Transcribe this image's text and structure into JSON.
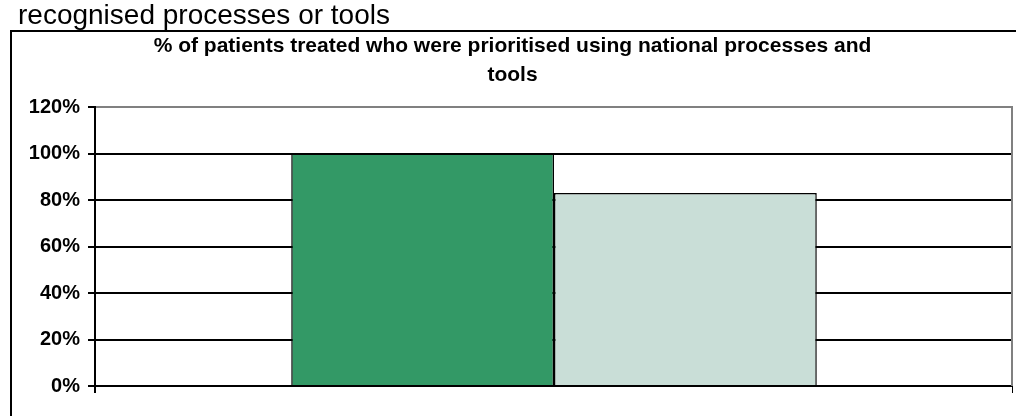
{
  "chart_data": {
    "type": "bar",
    "title": "% of patients treated who were prioritised using national processes and tools",
    "annotations": [
      "recognised processes or tools"
    ],
    "categories": [
      null
    ],
    "series": [
      {
        "color": "#339966",
        "values": [
          100
        ]
      },
      {
        "color": "#c9ded7",
        "values": [
          83
        ]
      }
    ],
    "ylim": [
      0,
      120
    ],
    "yticks": [
      {
        "value": 0,
        "label": "0%"
      },
      {
        "value": 20,
        "label": "20%"
      },
      {
        "value": 40,
        "label": "40%"
      },
      {
        "value": 60,
        "label": "60%"
      },
      {
        "value": 80,
        "label": "80%"
      },
      {
        "value": 100,
        "label": "100%"
      },
      {
        "value": 120,
        "label": "120%"
      }
    ],
    "grid": "y"
  }
}
